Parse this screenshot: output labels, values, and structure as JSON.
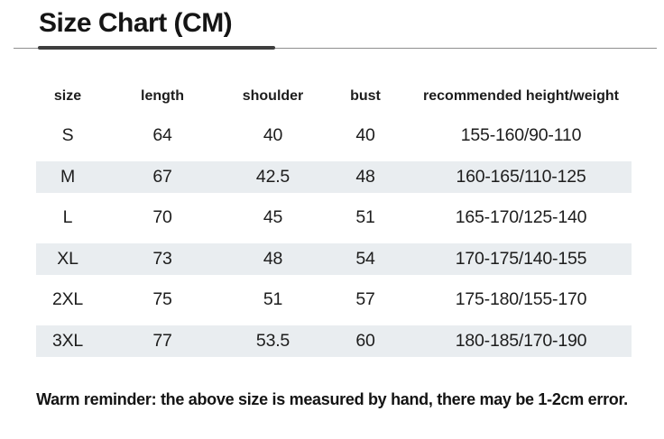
{
  "page": {
    "title": "Size Chart (CM)",
    "footer_note": "Warm reminder: the above size is measured by hand, there may be 1-2cm error."
  },
  "table": {
    "columns": [
      "size",
      "length",
      "shoulder",
      "bust",
      "recommended height/weight"
    ],
    "rows": [
      [
        "S",
        "64",
        "40",
        "40",
        "155-160/90-110"
      ],
      [
        "M",
        "67",
        "42.5",
        "48",
        "160-165/110-125"
      ],
      [
        "L",
        "70",
        "45",
        "51",
        "165-170/125-140"
      ],
      [
        "XL",
        "73",
        "48",
        "54",
        "170-175/140-155"
      ],
      [
        "2XL",
        "75",
        "51",
        "57",
        "175-180/155-170"
      ],
      [
        "3XL",
        "77",
        "53.5",
        "60",
        "180-185/170-190"
      ]
    ],
    "striped_row_indices": [
      1,
      3,
      5
    ]
  },
  "colors": {
    "stripe": "#e9edf0",
    "text": "#1d1d1d",
    "rule_dark": "#3e3e3e",
    "rule_light": "#8f8f8f"
  }
}
